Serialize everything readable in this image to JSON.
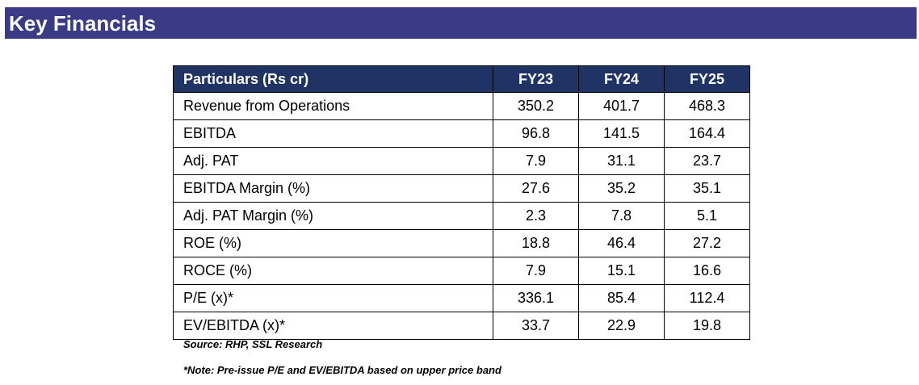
{
  "banner": {
    "title": "Key Financials",
    "color": "#3a3a87"
  },
  "table": {
    "header_color": "#1f3464",
    "columns": [
      "Particulars (Rs cr)",
      "FY23",
      "FY24",
      "FY25"
    ],
    "rows": [
      {
        "label": "Revenue from Operations",
        "values": [
          "350.2",
          "401.7",
          "468.3"
        ]
      },
      {
        "label": "EBITDA",
        "values": [
          "96.8",
          "141.5",
          "164.4"
        ]
      },
      {
        "label": "Adj. PAT",
        "values": [
          "7.9",
          "31.1",
          "23.7"
        ]
      },
      {
        "label": "EBITDA Margin (%)",
        "values": [
          "27.6",
          "35.2",
          "35.1"
        ]
      },
      {
        "label": "Adj. PAT Margin (%)",
        "values": [
          "2.3",
          "7.8",
          "5.1"
        ]
      },
      {
        "label": "ROE (%)",
        "values": [
          "18.8",
          "46.4",
          "27.2"
        ]
      },
      {
        "label": "ROCE (%)",
        "values": [
          "7.9",
          "15.1",
          "16.6"
        ]
      },
      {
        "label": "P/E (x)*",
        "values": [
          "336.1",
          "85.4",
          "112.4"
        ]
      },
      {
        "label": "EV/EBITDA (x)*",
        "values": [
          "33.7",
          "22.9",
          "19.8"
        ]
      }
    ]
  },
  "notes": {
    "source": "Source: RHP, SSL Research",
    "footnote": "*Note: Pre-issue P/E and EV/EBITDA based on upper price band"
  }
}
